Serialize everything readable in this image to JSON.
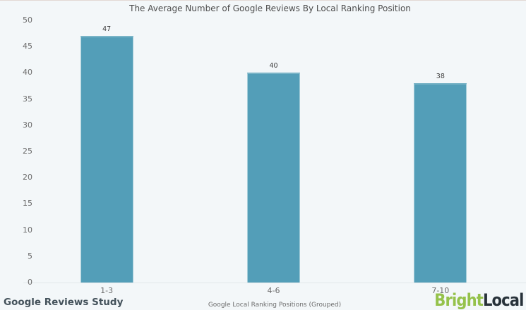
{
  "chart_data": {
    "type": "bar",
    "title": "The Average Number of Google Reviews By Local Ranking Position",
    "categories": [
      "1-3",
      "4-6",
      "7-10"
    ],
    "values": [
      47,
      40,
      38
    ],
    "xlabel": "Google Local Ranking Positions (Grouped)",
    "ylabel": "",
    "ylim": [
      0,
      50
    ],
    "yticks": [
      0,
      5,
      10,
      15,
      20,
      25,
      30,
      35,
      40,
      45,
      50
    ],
    "grid": false,
    "legend": "none",
    "bar_color": "#539eb8",
    "background_color": "#f3f7f9",
    "axis_text_color": "#6c6c6c"
  },
  "footer": {
    "study_label": "Google Reviews Study",
    "logo": {
      "part1": "Bright",
      "part2": "Local",
      "part1_color": "#95c24b",
      "part2_color": "#28323a"
    }
  }
}
